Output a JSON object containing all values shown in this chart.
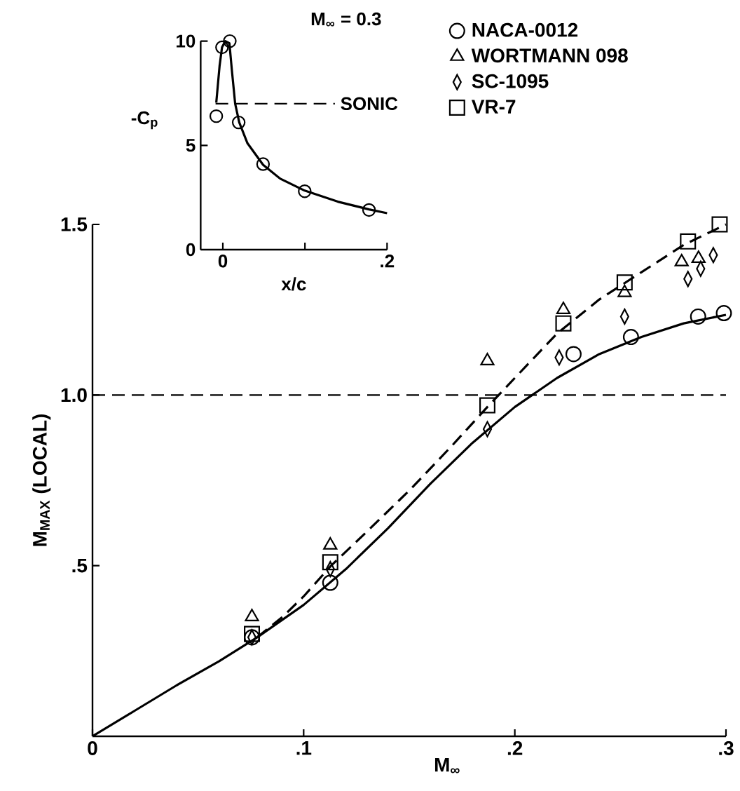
{
  "chart_data": [
    {
      "type": "scatter",
      "title": "M$_{∞}$ = 0.3",
      "xlabel": "x/c",
      "ylabel": "-C$_{p}$",
      "xlim": [
        -0.027,
        0.2
      ],
      "ylim": [
        0,
        10
      ],
      "xticks": [
        0,
        {
          "value": 0.1,
          "label": null
        },
        {
          "value": 0.2,
          "label": ".2"
        }
      ],
      "yticks": [
        0,
        5,
        10
      ],
      "series": [
        {
          "type": "line",
          "color": "#000000",
          "line_style": "solid",
          "x": [
            -0.008,
            -0.004,
            -0.001,
            0.003,
            0.008,
            0.011,
            0.015,
            0.02,
            0.03,
            0.049,
            0.07,
            0.0997,
            0.14,
            0.178,
            0.2
          ],
          "values": [
            7.05,
            8.8,
            9.7,
            10.0,
            9.9,
            8.6,
            7.0,
            6.1,
            5.1,
            4.07,
            3.4,
            2.83,
            2.3,
            1.93,
            1.75
          ]
        },
        {
          "type": "scatter",
          "color": "#000000",
          "marker": "circle",
          "x": [
            -0.008,
            -0.001,
            0.0085,
            0.0193,
            0.049,
            0.0997,
            0.178
          ],
          "values": [
            6.4,
            9.7,
            10.0,
            6.1,
            4.1,
            2.8,
            1.9
          ]
        }
      ],
      "ref_lines": [
        {
          "axis": "y",
          "value": 7,
          "label": "SONIC",
          "line_style": "dashed"
        }
      ]
    },
    {
      "type": "scatter",
      "xlabel": "M$_{∞}$",
      "ylabel": "M$_{MAX}$ (LOCAL)",
      "xlim": [
        0,
        0.3
      ],
      "ylim": [
        0,
        1.5
      ],
      "xticks": [
        0,
        {
          "value": 0.1,
          "label": ".1"
        },
        {
          "value": 0.2,
          "label": ".2"
        },
        {
          "value": 0.3,
          "label": ".3"
        }
      ],
      "yticks": [
        {
          "value": 0.5,
          "label": ".5"
        },
        {
          "value": 1.0,
          "label": "1.0"
        },
        1.5
      ],
      "legend": "top right",
      "series": [
        {
          "name": "NACA-0012",
          "color": "#000000",
          "marker": "circle",
          "x": [
            0.0755,
            0.1126,
            0.2278,
            0.255,
            0.2868,
            0.299
          ],
          "values": [
            0.29,
            0.45,
            1.12,
            1.17,
            1.23,
            1.24
          ]
        },
        {
          "name": "WORTMANN 098",
          "color": "#000000",
          "marker": "triangle",
          "x": [
            0.0755,
            0.1126,
            0.187,
            0.223,
            0.252,
            0.279,
            0.287
          ],
          "values": [
            0.35,
            0.56,
            1.1,
            1.25,
            1.3,
            1.39,
            1.4
          ]
        },
        {
          "name": "SC-1095",
          "color": "#000000",
          "marker": "diamond",
          "x": [
            0.0755,
            0.1126,
            0.187,
            0.221,
            0.252,
            0.282,
            0.288,
            0.294
          ],
          "values": [
            0.29,
            0.49,
            0.9,
            1.11,
            1.23,
            1.34,
            1.37,
            1.41
          ]
        },
        {
          "name": "VR-7",
          "color": "#000000",
          "marker": "square",
          "x": [
            0.0755,
            0.1126,
            0.187,
            0.223,
            0.252,
            0.282,
            0.297
          ],
          "values": [
            0.3,
            0.51,
            0.97,
            1.21,
            1.33,
            1.45,
            1.5
          ]
        },
        {
          "type": "line",
          "color": "#000000",
          "line_style": "solid",
          "x": [
            0,
            0.02,
            0.04,
            0.06,
            0.078,
            0.1,
            0.12,
            0.14,
            0.16,
            0.18,
            0.2,
            0.22,
            0.24,
            0.26,
            0.28,
            0.3
          ],
          "values": [
            0,
            0.075,
            0.15,
            0.22,
            0.29,
            0.385,
            0.49,
            0.61,
            0.74,
            0.86,
            0.965,
            1.05,
            1.12,
            1.17,
            1.21,
            1.235
          ]
        },
        {
          "type": "line",
          "color": "#000000",
          "line_style": "dashed",
          "x": [
            0.078,
            0.09,
            0.1,
            0.113,
            0.13,
            0.15,
            0.17,
            0.187,
            0.2,
            0.22,
            0.24,
            0.26,
            0.28,
            0.3
          ],
          "values": [
            0.29,
            0.35,
            0.41,
            0.5,
            0.6,
            0.72,
            0.85,
            0.965,
            1.05,
            1.18,
            1.28,
            1.36,
            1.44,
            1.5
          ]
        }
      ],
      "ref_lines": [
        {
          "axis": "y",
          "value": 1.0,
          "line_style": "dashed"
        }
      ]
    }
  ]
}
